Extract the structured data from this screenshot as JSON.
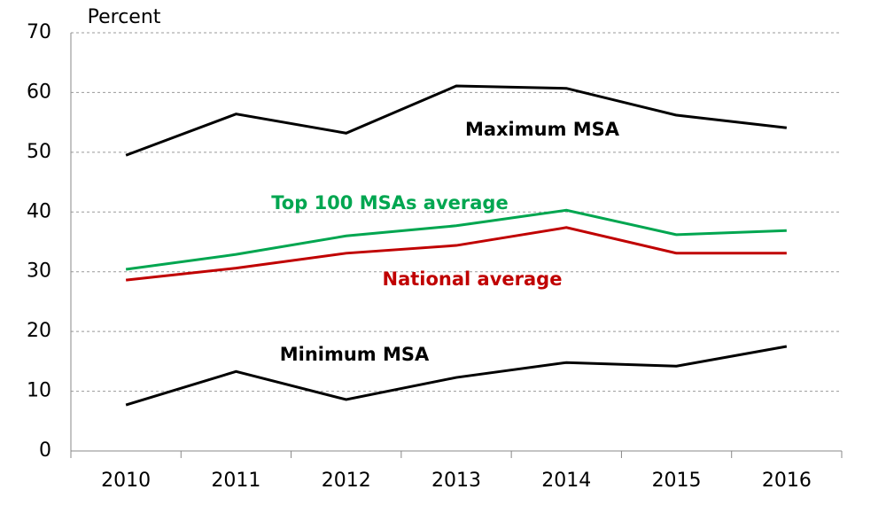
{
  "chart_data": {
    "type": "line",
    "y_label": "Percent",
    "categories": [
      "2010",
      "2011",
      "2012",
      "2013",
      "2014",
      "2015",
      "2016"
    ],
    "series": [
      {
        "name": "Maximum MSA",
        "color": "#000000",
        "values": [
          49.5,
          56.4,
          53.2,
          61.1,
          60.7,
          56.2,
          54.1
        ]
      },
      {
        "name": "Top 100 MSAs average",
        "color": "#00a650",
        "values": [
          30.4,
          32.9,
          36.0,
          37.7,
          40.3,
          36.2,
          36.9
        ]
      },
      {
        "name": "National average",
        "color": "#c00000",
        "values": [
          28.6,
          30.6,
          33.1,
          34.4,
          37.4,
          33.1,
          33.1
        ]
      },
      {
        "name": "Minimum MSA",
        "color": "#000000",
        "values": [
          7.7,
          13.3,
          8.6,
          12.3,
          14.8,
          14.2,
          17.5
        ]
      }
    ],
    "ylim": [
      0,
      70
    ],
    "yticks": [
      0,
      10,
      20,
      30,
      40,
      50,
      60,
      70
    ],
    "grid": true
  }
}
